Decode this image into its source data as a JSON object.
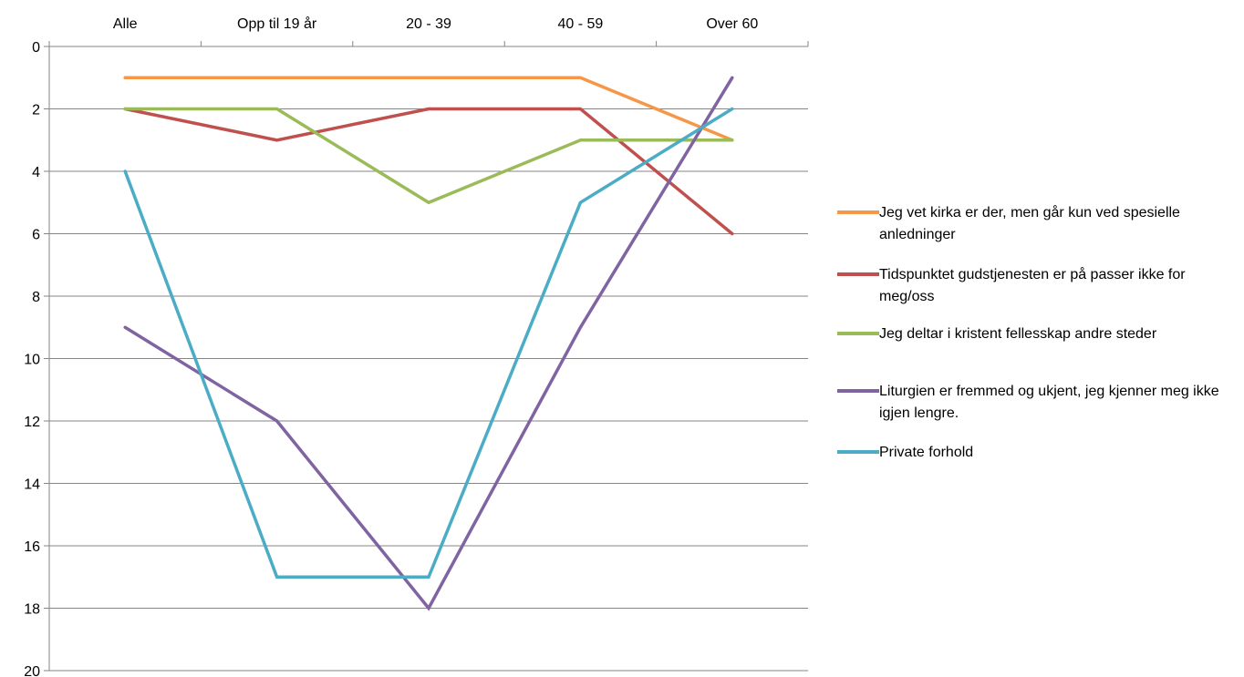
{
  "chart_data": {
    "type": "line",
    "categories": [
      "Alle",
      "Opp til 19 år",
      "20 - 39",
      "40 - 59",
      "Over 60"
    ],
    "y_axis": {
      "min": 0,
      "max": 20,
      "step": 2,
      "reversed": true,
      "tick_labels": [
        "0",
        "2",
        "4",
        "6",
        "8",
        "10",
        "12",
        "14",
        "16",
        "18",
        "20"
      ]
    },
    "grid": true,
    "legend_position": "right",
    "series": [
      {
        "name": "Jeg vet kirka er der, men går kun ved spesielle anledninger",
        "color": "#f79646",
        "values": [
          1,
          1,
          1,
          1,
          3
        ]
      },
      {
        "name": "Tidspunktet gudstjenesten er på passer ikke for meg/oss",
        "color": "#c0504d",
        "values": [
          2,
          3,
          2,
          2,
          6
        ]
      },
      {
        "name": "Jeg deltar i kristent fellesskap andre steder",
        "color": "#9bbb59",
        "values": [
          2,
          2,
          5,
          3,
          3
        ]
      },
      {
        "name": "Liturgien er fremmed og ukjent, jeg kjenner meg ikke igjen lengre.",
        "color": "#8064a2",
        "values": [
          9,
          12,
          18,
          9,
          1
        ]
      },
      {
        "name": "Private forhold",
        "color": "#4bacc6",
        "values": [
          4,
          17,
          17,
          5,
          2
        ]
      }
    ]
  }
}
